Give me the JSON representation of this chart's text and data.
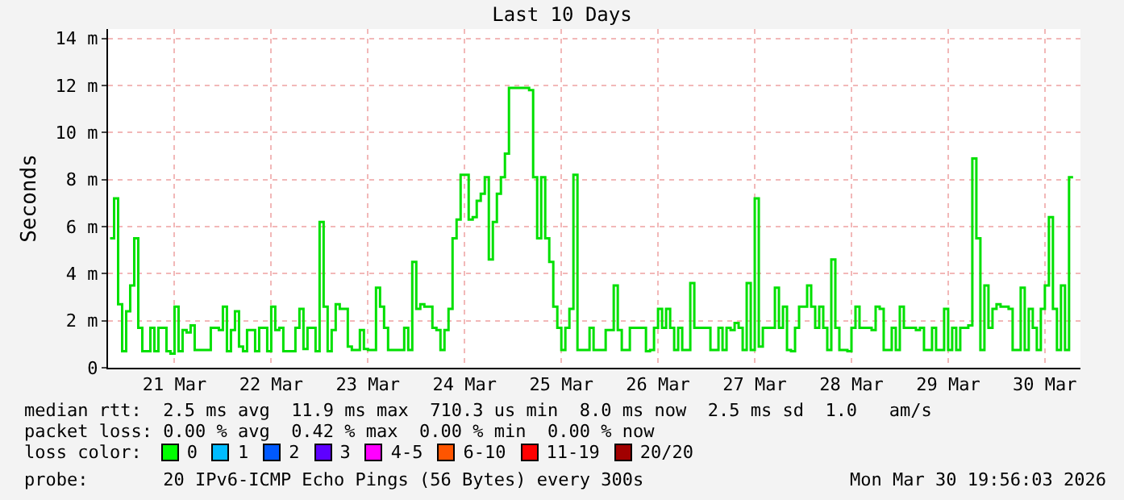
{
  "chart_data": {
    "type": "step",
    "title": "Last 10 Days",
    "ylabel": "Seconds",
    "legend_title": "loss color:",
    "legend": "bottom",
    "grid": true,
    "line_style": "solid",
    "xlim": [
      "2026-03-20T19:30",
      "2026-03-30T20:50"
    ],
    "xticks": [
      {
        "value": "2026-03-21T12:00",
        "label": "21 Mar"
      },
      {
        "value": "2026-03-22T12:00",
        "label": "22 Mar"
      },
      {
        "value": "2026-03-23T12:00",
        "label": "23 Mar"
      },
      {
        "value": "2026-03-24T12:00",
        "label": "24 Mar"
      },
      {
        "value": "2026-03-25T12:00",
        "label": "25 Mar"
      },
      {
        "value": "2026-03-26T12:00",
        "label": "26 Mar"
      },
      {
        "value": "2026-03-27T12:00",
        "label": "27 Mar"
      },
      {
        "value": "2026-03-28T12:00",
        "label": "28 Mar"
      },
      {
        "value": "2026-03-29T12:00",
        "label": "29 Mar"
      },
      {
        "value": "2026-03-30T12:00",
        "label": "30 Mar"
      }
    ],
    "ylim": [
      0,
      14.4
    ],
    "yticks": [
      0,
      {
        "value": 2,
        "label": "2 m"
      },
      {
        "value": 4,
        "label": "4 m"
      },
      {
        "value": 6,
        "label": "6 m"
      },
      {
        "value": 8,
        "label": "8 m"
      },
      {
        "value": 10,
        "label": "10 m"
      },
      {
        "value": 12,
        "label": "12 m"
      },
      {
        "value": 14,
        "label": "14 m"
      }
    ],
    "series": [
      {
        "color": "#00e000",
        "x": [
          "2026-03-20T20:00",
          "2026-03-20T21:00",
          "2026-03-20T22:00",
          "2026-03-20T23:00",
          "2026-03-21T00:00",
          "2026-03-21T01:00",
          "2026-03-21T02:00",
          "2026-03-21T03:00",
          "2026-03-21T04:00",
          "2026-03-21T06:00",
          "2026-03-21T07:00",
          "2026-03-21T08:00",
          "2026-03-21T10:00",
          "2026-03-21T11:00",
          "2026-03-21T12:00",
          "2026-03-21T13:00",
          "2026-03-21T14:00",
          "2026-03-21T15:00",
          "2026-03-21T16:00",
          "2026-03-21T17:00",
          "2026-03-21T21:00",
          "2026-03-21T23:00",
          "2026-03-22T00:00",
          "2026-03-22T01:00",
          "2026-03-22T02:00",
          "2026-03-22T03:00",
          "2026-03-22T04:00",
          "2026-03-22T05:00",
          "2026-03-22T06:00",
          "2026-03-22T08:00",
          "2026-03-22T09:00",
          "2026-03-22T11:00",
          "2026-03-22T12:00",
          "2026-03-22T13:00",
          "2026-03-22T14:00",
          "2026-03-22T15:00",
          "2026-03-22T18:00",
          "2026-03-22T19:00",
          "2026-03-22T20:00",
          "2026-03-22T21:00",
          "2026-03-22T23:00",
          "2026-03-23T00:00",
          "2026-03-23T01:00",
          "2026-03-23T02:00",
          "2026-03-23T03:00",
          "2026-03-23T04:00",
          "2026-03-23T05:00",
          "2026-03-23T07:00",
          "2026-03-23T08:00",
          "2026-03-23T10:00",
          "2026-03-23T11:00",
          "2026-03-23T12:00",
          "2026-03-23T14:00",
          "2026-03-23T15:00",
          "2026-03-23T16:00",
          "2026-03-23T17:00",
          "2026-03-23T21:00",
          "2026-03-23T22:00",
          "2026-03-23T23:00",
          "2026-03-24T00:00",
          "2026-03-24T01:00",
          "2026-03-24T02:00",
          "2026-03-24T04:00",
          "2026-03-24T05:00",
          "2026-03-24T06:00",
          "2026-03-24T07:00",
          "2026-03-24T08:00",
          "2026-03-24T09:00",
          "2026-03-24T10:00",
          "2026-03-24T11:00",
          "2026-03-24T13:00",
          "2026-03-24T14:00",
          "2026-03-24T15:00",
          "2026-03-24T16:00",
          "2026-03-24T17:00",
          "2026-03-24T18:00",
          "2026-03-24T19:00",
          "2026-03-24T20:00",
          "2026-03-24T21:00",
          "2026-03-24T22:00",
          "2026-03-24T23:00",
          "2026-03-25T03:00",
          "2026-03-25T04:00",
          "2026-03-25T05:00",
          "2026-03-25T06:00",
          "2026-03-25T07:00",
          "2026-03-25T08:00",
          "2026-03-25T09:00",
          "2026-03-25T10:00",
          "2026-03-25T11:00",
          "2026-03-25T12:00",
          "2026-03-25T13:00",
          "2026-03-25T14:00",
          "2026-03-25T15:00",
          "2026-03-25T16:00",
          "2026-03-25T19:00",
          "2026-03-25T20:00",
          "2026-03-25T23:00",
          "2026-03-26T01:00",
          "2026-03-26T02:00",
          "2026-03-26T03:00",
          "2026-03-26T05:00",
          "2026-03-26T09:00",
          "2026-03-26T10:00",
          "2026-03-26T11:00",
          "2026-03-26T12:00",
          "2026-03-26T13:00",
          "2026-03-26T14:00",
          "2026-03-26T15:00",
          "2026-03-26T16:00",
          "2026-03-26T17:00",
          "2026-03-26T18:00",
          "2026-03-26T20:00",
          "2026-03-26T21:00",
          "2026-03-27T01:00",
          "2026-03-27T03:00",
          "2026-03-27T04:00",
          "2026-03-27T05:00",
          "2026-03-27T06:00",
          "2026-03-27T07:00",
          "2026-03-27T08:00",
          "2026-03-27T09:00",
          "2026-03-27T10:00",
          "2026-03-27T11:00",
          "2026-03-27T12:00",
          "2026-03-27T13:00",
          "2026-03-27T14:00",
          "2026-03-27T17:00",
          "2026-03-27T18:00",
          "2026-03-27T19:00",
          "2026-03-27T20:00",
          "2026-03-27T21:00",
          "2026-03-27T22:00",
          "2026-03-27T23:00",
          "2026-03-28T01:00",
          "2026-03-28T02:00",
          "2026-03-28T03:00",
          "2026-03-28T04:00",
          "2026-03-28T05:00",
          "2026-03-28T06:00",
          "2026-03-28T07:00",
          "2026-03-28T08:00",
          "2026-03-28T09:00",
          "2026-03-28T11:00",
          "2026-03-28T12:00",
          "2026-03-28T13:00",
          "2026-03-28T14:00",
          "2026-03-28T17:00",
          "2026-03-28T18:00",
          "2026-03-28T19:00",
          "2026-03-28T20:00",
          "2026-03-28T22:00",
          "2026-03-28T23:00",
          "2026-03-29T00:00",
          "2026-03-29T01:00",
          "2026-03-29T04:00",
          "2026-03-29T05:00",
          "2026-03-29T06:00",
          "2026-03-29T08:00",
          "2026-03-29T09:00",
          "2026-03-29T11:00",
          "2026-03-29T12:00",
          "2026-03-29T13:00",
          "2026-03-29T14:00",
          "2026-03-29T15:00",
          "2026-03-29T17:00",
          "2026-03-29T18:00",
          "2026-03-29T19:00",
          "2026-03-29T20:00",
          "2026-03-29T21:00",
          "2026-03-29T22:00",
          "2026-03-29T23:00",
          "2026-03-30T00:00",
          "2026-03-30T01:00",
          "2026-03-30T03:00",
          "2026-03-30T04:00",
          "2026-03-30T06:00",
          "2026-03-30T07:00",
          "2026-03-30T08:00",
          "2026-03-30T09:00",
          "2026-03-30T10:00",
          "2026-03-30T11:00",
          "2026-03-30T12:00",
          "2026-03-30T13:00",
          "2026-03-30T14:00",
          "2026-03-30T15:00",
          "2026-03-30T16:00",
          "2026-03-30T17:00",
          "2026-03-30T18:00",
          "2026-03-30T19:00"
        ],
        "values": [
          5.5,
          7.2,
          2.7,
          0.7,
          2.4,
          3.5,
          5.5,
          1.7,
          0.7,
          1.7,
          0.7,
          1.7,
          0.7,
          0.6,
          2.6,
          0.7,
          1.6,
          1.5,
          1.8,
          0.75,
          1.7,
          1.6,
          2.6,
          0.7,
          1.6,
          2.4,
          0.9,
          0.7,
          1.6,
          0.7,
          1.7,
          0.7,
          2.6,
          1.6,
          1.7,
          0.7,
          1.7,
          2.5,
          0.8,
          1.7,
          0.7,
          6.2,
          2.6,
          0.7,
          1.6,
          2.7,
          2.5,
          0.9,
          0.75,
          1.6,
          0.8,
          0.75,
          3.4,
          2.6,
          1.7,
          0.75,
          1.7,
          0.75,
          4.5,
          2.5,
          2.7,
          2.6,
          1.7,
          1.6,
          0.75,
          1.6,
          2.5,
          5.5,
          6.3,
          8.2,
          6.3,
          6.4,
          7.1,
          7.4,
          8.1,
          4.6,
          6.2,
          7.4,
          8.1,
          9.1,
          11.9,
          11.9,
          11.8,
          8.1,
          5.5,
          8.1,
          5.5,
          4.5,
          2.6,
          1.7,
          0.75,
          1.7,
          2.5,
          8.2,
          0.75,
          1.7,
          0.75,
          1.6,
          3.5,
          1.6,
          0.75,
          1.7,
          0.7,
          0.75,
          1.7,
          2.5,
          1.7,
          2.5,
          1.7,
          0.75,
          1.7,
          0.75,
          3.6,
          1.7,
          0.75,
          1.7,
          0.75,
          1.7,
          1.6,
          1.9,
          1.7,
          0.75,
          3.6,
          0.75,
          7.2,
          0.9,
          1.7,
          3.4,
          1.7,
          2.6,
          0.75,
          0.7,
          1.7,
          2.6,
          3.5,
          2.6,
          1.7,
          2.6,
          1.7,
          0.75,
          4.6,
          1.7,
          0.75,
          0.7,
          1.7,
          2.6,
          1.7,
          1.6,
          2.6,
          2.5,
          0.75,
          1.7,
          0.75,
          2.6,
          1.7,
          1.6,
          1.7,
          0.75,
          1.7,
          0.75,
          2.5,
          0.75,
          1.7,
          0.75,
          1.7,
          1.8,
          8.9,
          5.5,
          0.75,
          3.5,
          1.7,
          2.5,
          2.7,
          2.6,
          2.5,
          0.75,
          3.4,
          0.75,
          2.5,
          1.7,
          0.75,
          2.5,
          3.5,
          6.4,
          2.5,
          0.75,
          3.5,
          0.75,
          8.1,
          8.1
        ]
      },
      {
        "name": "0",
        "color": "#00ff00"
      },
      {
        "name": "1",
        "color": "#00bbff"
      },
      {
        "name": "2",
        "color": "#0059ff"
      },
      {
        "name": "3",
        "color": "#5e00ff"
      },
      {
        "name": "4-5",
        "color": "#ff00ff"
      },
      {
        "name": "6-10",
        "color": "#ff5500"
      },
      {
        "name": "11-19",
        "color": "#ff0000"
      },
      {
        "name": "20/20",
        "color": "#a10000"
      }
    ],
    "annotations": [
      "median rtt:  2.5 ms avg  11.9 ms max  710.3 us min  8.0 ms now  2.5 ms sd  1.0   am/s",
      "packet loss: 0.00 % avg  0.42 % max  0.00 % min  0.00 % now",
      "probe:       20 IPv6-ICMP Echo Pings (56 Bytes) every 300s",
      "Mon Mar 30 19:56:03 2026"
    ]
  }
}
